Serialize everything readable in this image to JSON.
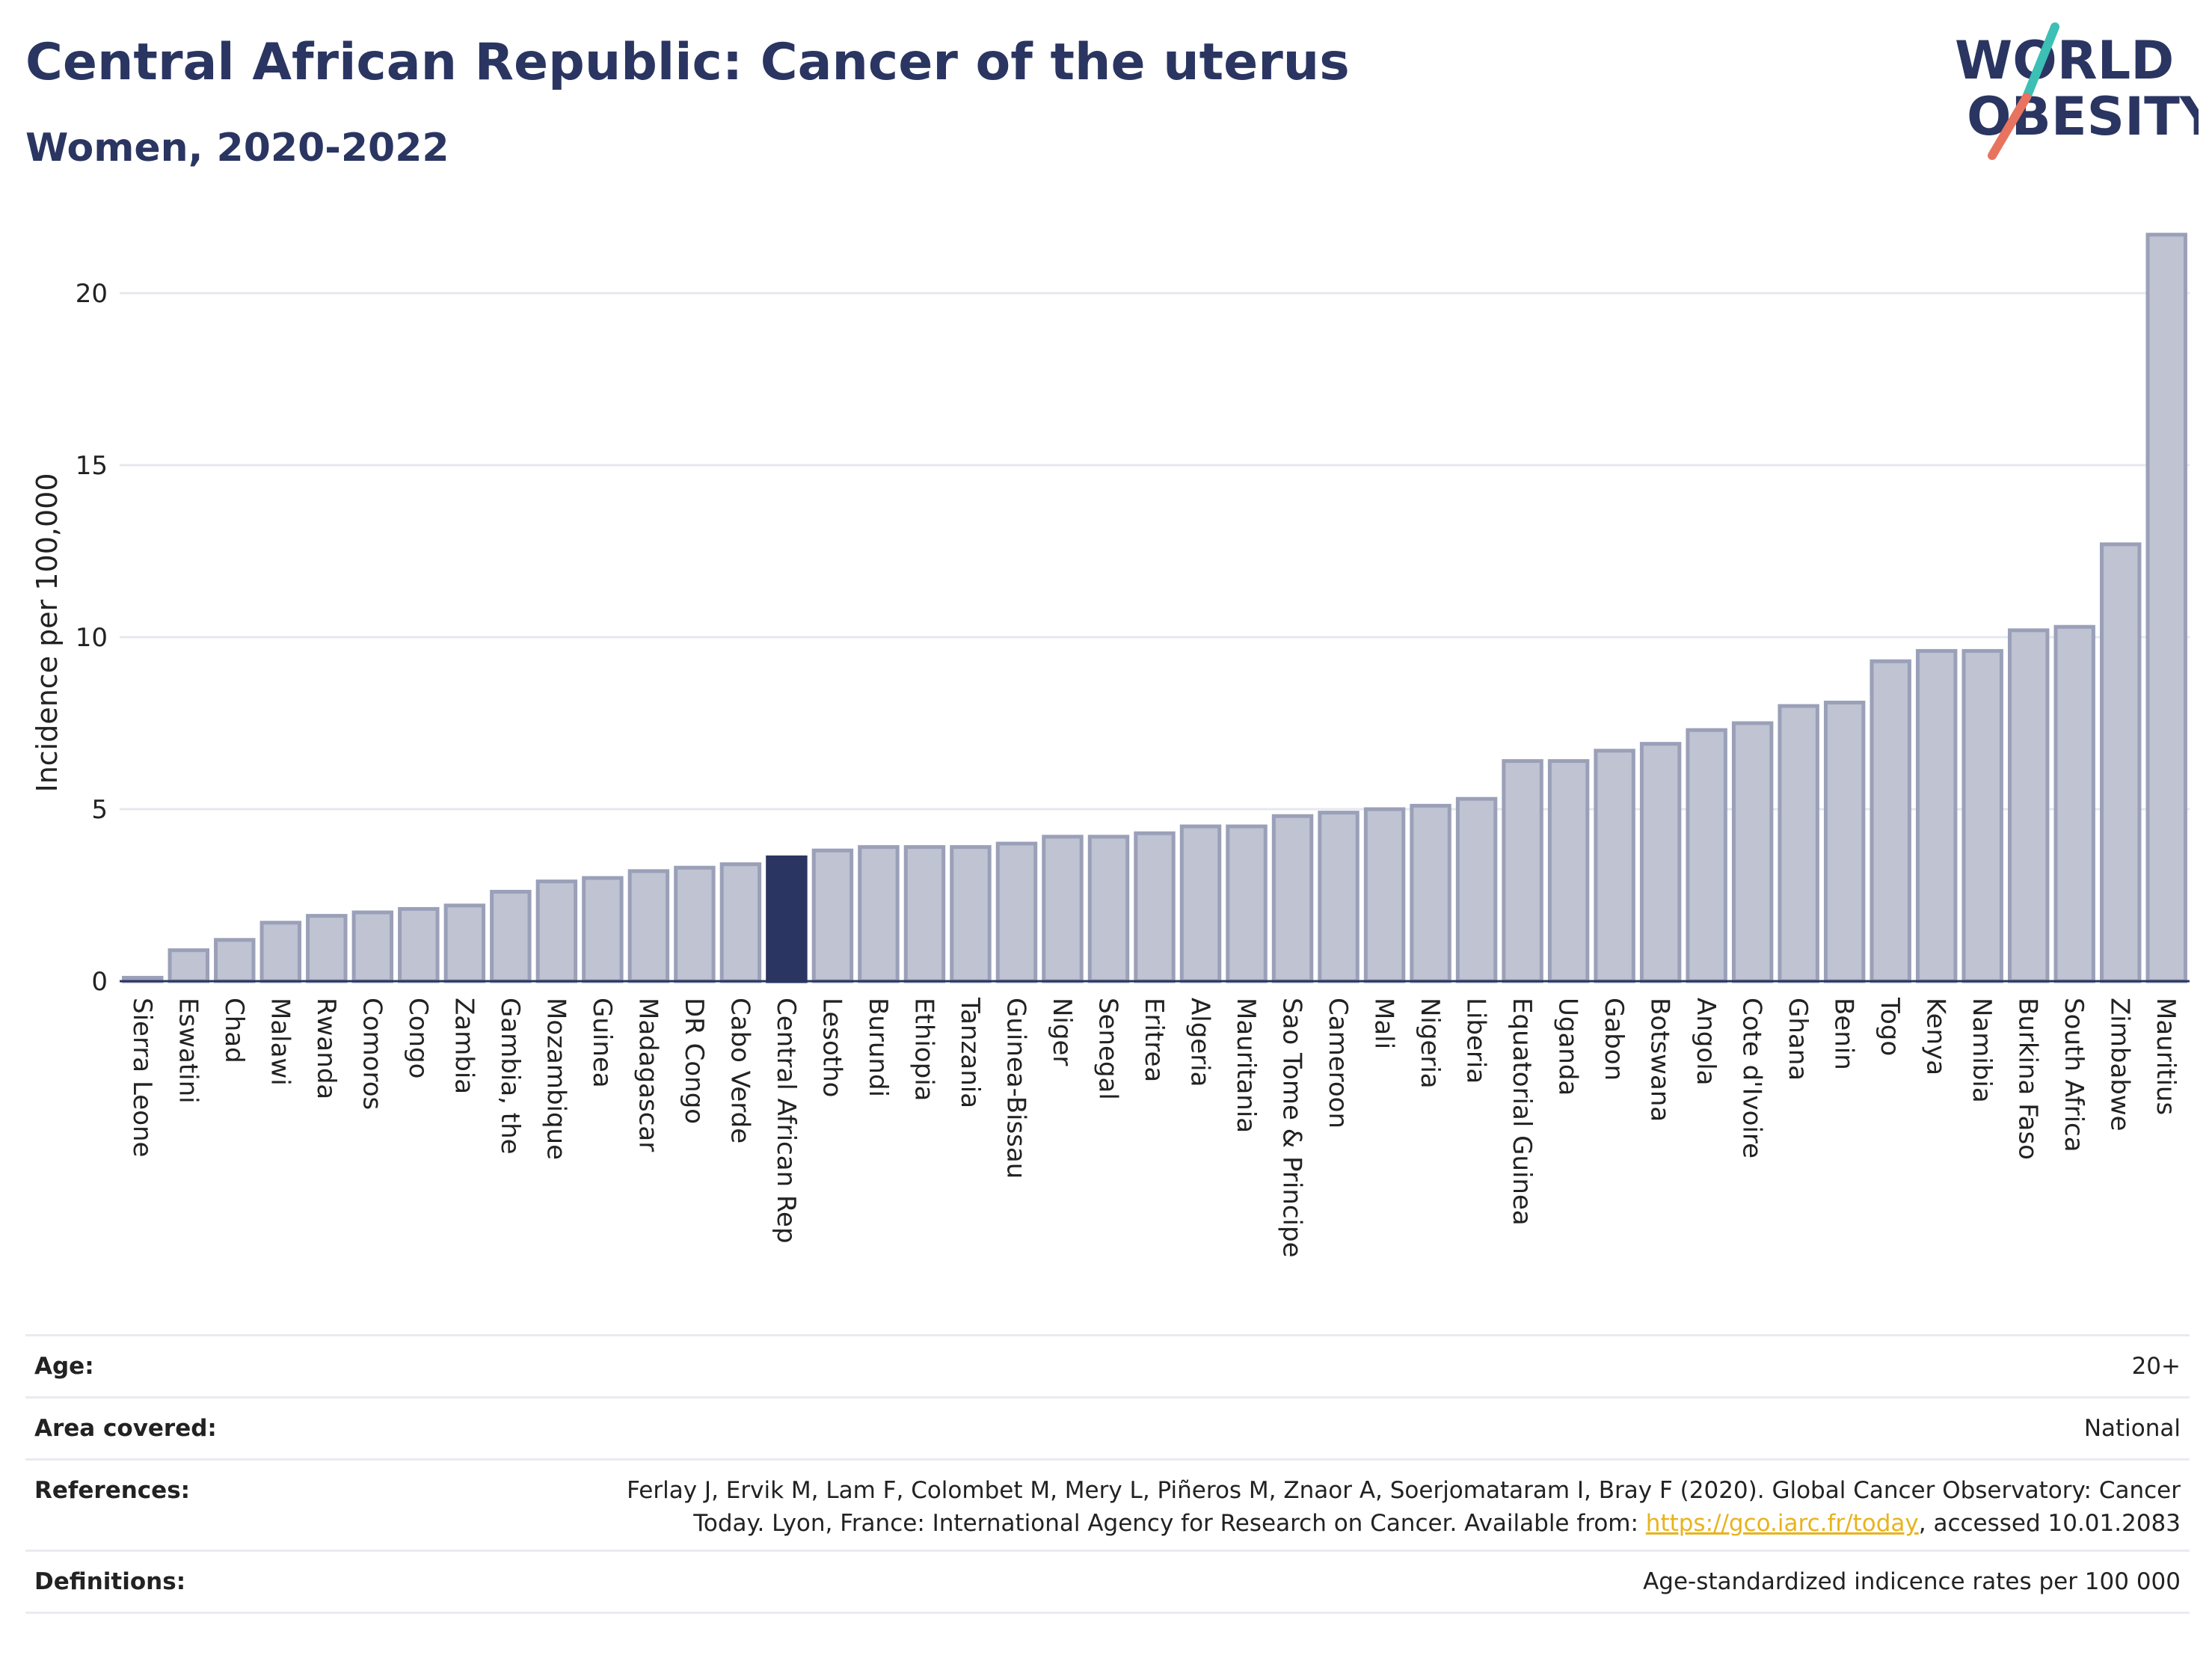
{
  "header": {
    "title": "Central African Republic: Cancer of the uterus",
    "subtitle": "Women, 2020-2022"
  },
  "logo": {
    "line1": "WORLD",
    "line2": "OBESITY"
  },
  "chart_data": {
    "type": "bar",
    "ylabel": "Incidence per 100,000",
    "xlabel": "",
    "ylim": [
      0,
      22
    ],
    "yticks": [
      0,
      5,
      10,
      15,
      20
    ],
    "grid": true,
    "highlight": "Central African Rep",
    "colors": {
      "bar": "#bfc3d2",
      "bar_edge": "#9aa0b8",
      "highlight": "#2a3561",
      "grid": "#e6e8ee"
    },
    "categories": [
      "Sierra Leone",
      "Eswatini",
      "Chad",
      "Malawi",
      "Rwanda",
      "Comoros",
      "Congo",
      "Zambia",
      "Gambia, the",
      "Mozambique",
      "Guinea",
      "Madagascar",
      "DR Congo",
      "Cabo Verde",
      "Central African Rep",
      "Lesotho",
      "Burundi",
      "Ethiopia",
      "Tanzania",
      "Guinea-Bissau",
      "Niger",
      "Senegal",
      "Eritrea",
      "Algeria",
      "Mauritania",
      "Sao Tome & Principe",
      "Cameroon",
      "Mali",
      "Nigeria",
      "Liberia",
      "Equatorial Guinea",
      "Uganda",
      "Gabon",
      "Botswana",
      "Angola",
      "Cote d'Ivoire",
      "Ghana",
      "Benin",
      "Togo",
      "Kenya",
      "Namibia",
      "Burkina Faso",
      "South Africa",
      "Zimbabwe",
      "Mauritius"
    ],
    "values": [
      0.1,
      0.9,
      1.2,
      1.7,
      1.9,
      2.0,
      2.1,
      2.2,
      2.6,
      2.9,
      3.0,
      3.2,
      3.3,
      3.4,
      3.6,
      3.8,
      3.9,
      3.9,
      3.9,
      4.0,
      4.2,
      4.2,
      4.3,
      4.5,
      4.5,
      4.8,
      4.9,
      5.0,
      5.1,
      5.3,
      6.4,
      6.4,
      6.7,
      6.9,
      7.3,
      7.5,
      8.0,
      8.1,
      9.3,
      9.6,
      9.6,
      10.2,
      10.3,
      12.7,
      21.7
    ]
  },
  "meta": [
    {
      "key": "Age:",
      "value": "20+"
    },
    {
      "key": "Area covered:",
      "value": "National"
    },
    {
      "key": "References:",
      "value_line1": "Ferlay J, Ervik M, Lam F, Colombet M, Mery L, Piñeros M, Znaor A, Soerjomataram I, Bray F (2020). Global Cancer Observatory: Cancer",
      "value_line2_pre": "Today. Lyon, France: International Agency for Research on Cancer. Available from: ",
      "link": "https://gco.iarc.fr/today",
      "value_line2_post": ", accessed 10.01.2083"
    },
    {
      "key": "Definitions:",
      "value": "Age-standardized indicence rates per 100 000"
    }
  ]
}
